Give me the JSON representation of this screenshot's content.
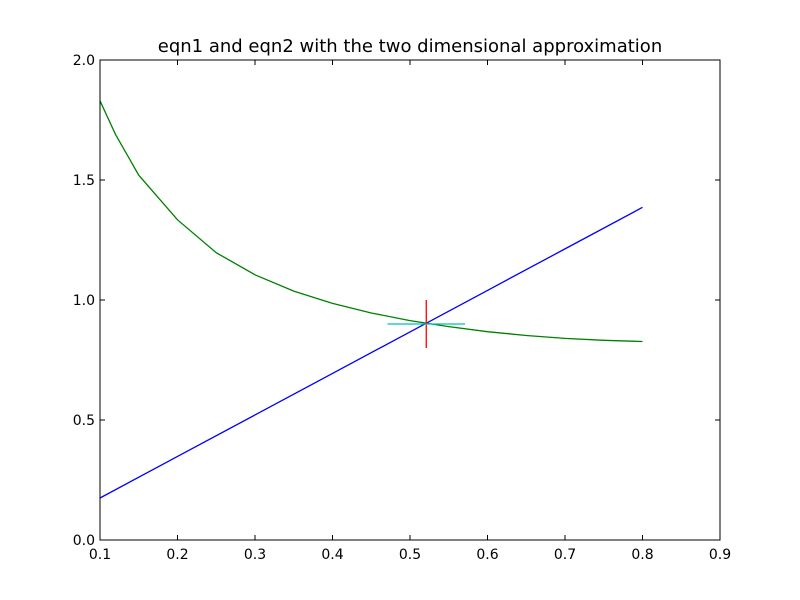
{
  "chart_data": {
    "type": "line",
    "title": "eqn1 and eqn2 with the two dimensional approximation",
    "xlabel": "",
    "ylabel": "",
    "xlim": [
      0.1,
      0.9
    ],
    "ylim": [
      0.0,
      2.0
    ],
    "x_ticks": [
      "0.1",
      "0.2",
      "0.3",
      "0.4",
      "0.5",
      "0.6",
      "0.7",
      "0.8",
      "0.9"
    ],
    "y_ticks": [
      "0.0",
      "0.5",
      "1.0",
      "1.5",
      "2.0"
    ],
    "grid": false,
    "legend": "none",
    "series": [
      {
        "color": "#0000ff",
        "x": [
          0.1,
          0.2,
          0.3,
          0.4,
          0.5,
          0.6,
          0.7,
          0.8
        ],
        "y": [
          0.175,
          0.348,
          0.521,
          0.694,
          0.867,
          1.04,
          1.213,
          1.386
        ]
      },
      {
        "color": "#008000",
        "x": [
          0.1,
          0.12,
          0.15,
          0.2,
          0.25,
          0.3,
          0.35,
          0.4,
          0.45,
          0.5,
          0.55,
          0.6,
          0.65,
          0.7,
          0.75,
          0.8
        ],
        "y": [
          1.83,
          1.69,
          1.52,
          1.334,
          1.197,
          1.105,
          1.037,
          0.986,
          0.946,
          0.914,
          0.889,
          0.868,
          0.852,
          0.84,
          0.832,
          0.827
        ]
      },
      {
        "color": "#ff0000",
        "x": [
          0.521,
          0.521
        ],
        "y": [
          0.8,
          1.0
        ]
      },
      {
        "color": "#00bfbf",
        "x": [
          0.471,
          0.571
        ],
        "y": [
          0.9,
          0.9
        ]
      }
    ]
  }
}
